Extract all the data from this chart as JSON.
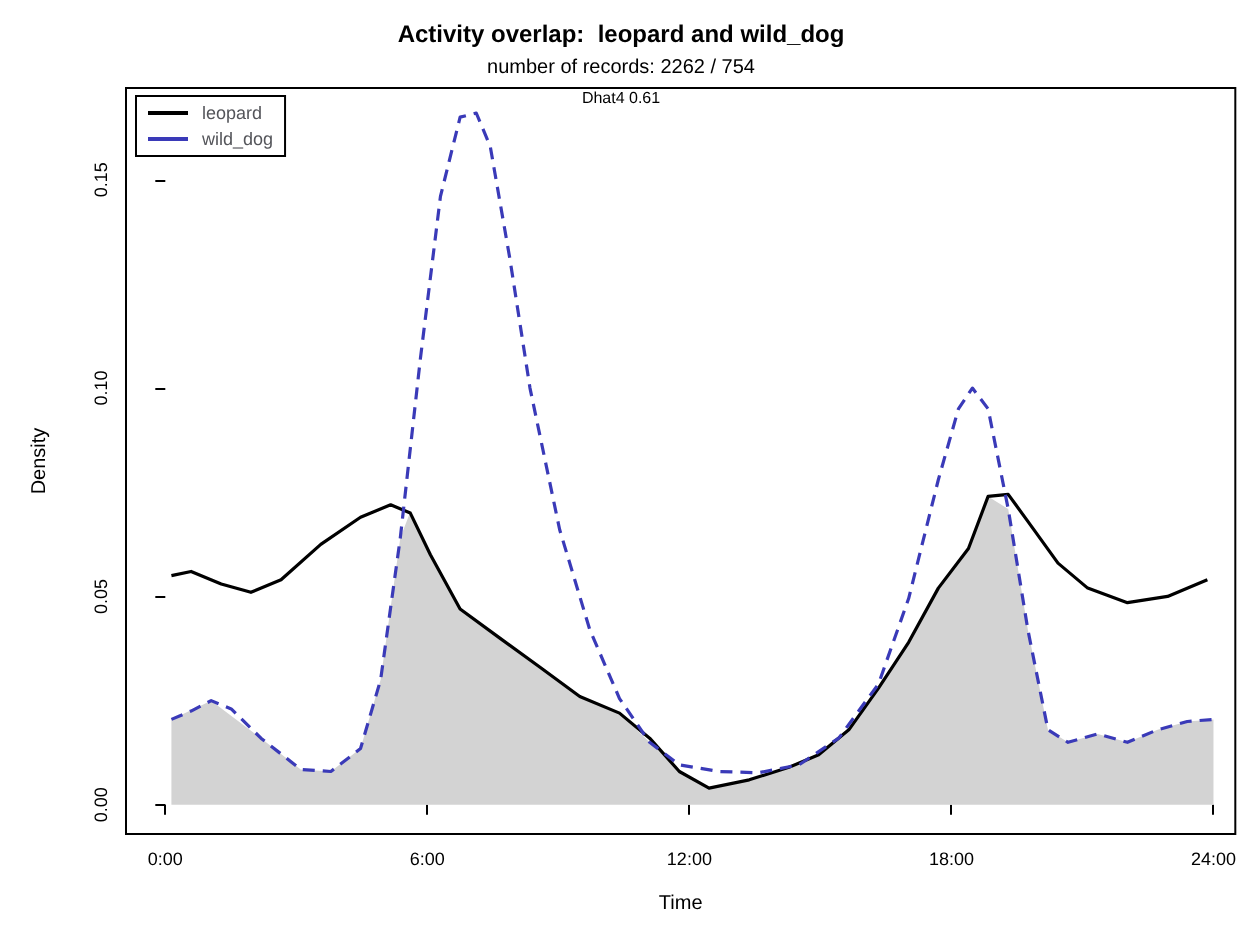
{
  "chart_data": {
    "type": "line",
    "title": "Activity overlap:  leopard and wild_dog",
    "subtitle": "number of records: 2262 / 754",
    "annotations": [
      "Dhat4 0.61"
    ],
    "xlabel": "Time",
    "ylabel": "Density",
    "xlim": [
      -0.9,
      24.5
    ],
    "xticks": [
      {
        "value": 0,
        "label": "0:00"
      },
      {
        "value": 6,
        "label": "6:00"
      },
      {
        "value": 12,
        "label": "12:00"
      },
      {
        "value": 18,
        "label": "18:00"
      },
      {
        "value": 24,
        "label": "24:00"
      }
    ],
    "ylim": [
      -0.007,
      0.172
    ],
    "yticks": [
      {
        "value": 0,
        "label": "0.00"
      },
      {
        "value": 0.05,
        "label": "0.05"
      },
      {
        "value": 0.1,
        "label": "0.10"
      },
      {
        "value": 0.15,
        "label": "0.15"
      }
    ],
    "grid": false,
    "legend": "top left",
    "marker": "none",
    "series": [
      {
        "type": "area",
        "color": "#d3d3d3",
        "x": [
          0.14,
          1.05,
          2.19,
          3.1,
          3.79,
          4.47,
          4.93,
          5.38,
          5.6,
          6.07,
          6.75,
          7.66,
          8.58,
          9.49,
          10.4,
          11.09,
          11.77,
          12.45,
          13.37,
          14.28,
          14.96,
          15.65,
          16.33,
          17.02,
          17.7,
          18.39,
          18.84,
          19.3,
          19.75,
          20.21,
          20.67,
          21.35,
          22.03,
          22.72,
          23.4,
          24
        ],
        "values": [
          0.0205,
          0.025,
          0.016,
          0.0085,
          0.008,
          0.0135,
          0.03,
          0.064,
          0.07,
          0.06,
          0.047,
          0.04,
          0.033,
          0.026,
          0.022,
          0.015,
          0.008,
          0.004,
          0.006,
          0.009,
          0.012,
          0.018,
          0.028,
          0.039,
          0.052,
          0.0615,
          0.074,
          0.071,
          0.042,
          0.018,
          0.015,
          0.017,
          0.015,
          0.018,
          0.02,
          0.0205
        ]
      },
      {
        "name": "leopard",
        "color": "#000000",
        "line_style": "solid",
        "x": [
          0.14,
          0.59,
          1.28,
          1.96,
          2.65,
          3.56,
          4.47,
          5.16,
          5.61,
          6.07,
          6.75,
          7.66,
          8.58,
          9.49,
          10.4,
          11.09,
          11.77,
          12.45,
          13.37,
          14.28,
          14.96,
          15.65,
          16.33,
          17.02,
          17.7,
          18.39,
          18.84,
          19.3,
          19.75,
          20.44,
          21.12,
          22.03,
          22.95,
          23.86
        ],
        "values": [
          0.055,
          0.056,
          0.053,
          0.051,
          0.054,
          0.0625,
          0.069,
          0.072,
          0.07,
          0.06,
          0.047,
          0.04,
          0.033,
          0.026,
          0.022,
          0.016,
          0.008,
          0.004,
          0.006,
          0.009,
          0.012,
          0.018,
          0.028,
          0.039,
          0.052,
          0.0615,
          0.074,
          0.0745,
          0.068,
          0.058,
          0.052,
          0.0485,
          0.05,
          0.054
        ]
      },
      {
        "name": "wild_dog",
        "color": "#3a3ab8",
        "line_style": "dashed",
        "x": [
          0.14,
          0.59,
          1.05,
          1.51,
          2.19,
          3.1,
          3.79,
          4.47,
          4.93,
          5.38,
          5.84,
          6.3,
          6.75,
          7.12,
          7.44,
          7.89,
          8.35,
          9.03,
          9.72,
          10.4,
          11.09,
          11.77,
          12.68,
          13.59,
          14.51,
          15.42,
          16.33,
          17.02,
          17.7,
          18.16,
          18.48,
          18.84,
          19.3,
          19.75,
          20.21,
          20.67,
          21.35,
          22.03,
          22.72,
          23.4,
          24
        ],
        "values": [
          0.0205,
          0.0225,
          0.025,
          0.023,
          0.016,
          0.0085,
          0.008,
          0.0135,
          0.03,
          0.064,
          0.107,
          0.146,
          0.165,
          0.166,
          0.158,
          0.131,
          0.1,
          0.066,
          0.042,
          0.0255,
          0.015,
          0.0096,
          0.008,
          0.0077,
          0.0096,
          0.016,
          0.029,
          0.0495,
          0.078,
          0.095,
          0.1,
          0.095,
          0.071,
          0.042,
          0.018,
          0.015,
          0.017,
          0.015,
          0.018,
          0.02,
          0.0205
        ]
      }
    ]
  }
}
